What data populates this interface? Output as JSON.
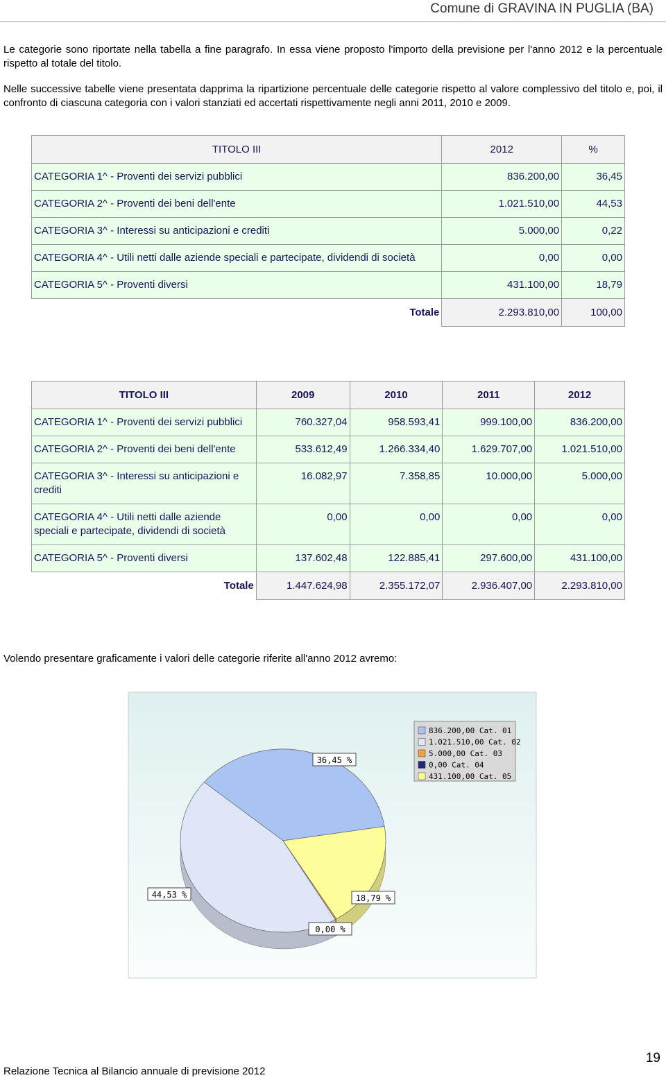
{
  "header": "Comune di GRAVINA IN PUGLIA (BA)",
  "paragraphs": [
    "Le categorie sono riportate nella tabella a fine paragrafo. In essa viene proposto l'importo della previsione per l'anno 2012 e la percentuale rispetto al totale del titolo.",
    "Nelle successive tabelle viene presentata dapprima la ripartizione percentuale delle categorie rispetto al valore complessivo del titolo e, poi, il confronto di ciascuna categoria con i valori stanziati ed accertati rispettivamente negli anni 2011, 2010 e 2009.",
    "Volendo presentare graficamente i valori delle categorie riferite all'anno 2012 avremo:"
  ],
  "table1": {
    "headers": [
      "TITOLO III",
      "2012",
      "%"
    ],
    "rows": [
      [
        "CATEGORIA 1^ - Proventi dei servizi pubblici",
        "836.200,00",
        "36,45"
      ],
      [
        "CATEGORIA 2^ - Proventi dei beni dell'ente",
        "1.021.510,00",
        "44,53"
      ],
      [
        "CATEGORIA 3^ - Interessi su anticipazioni e crediti",
        "5.000,00",
        "0,22"
      ],
      [
        "CATEGORIA 4^ - Utili netti dalle aziende speciali  e partecipate, dividendi di società",
        "0,00",
        "0,00"
      ],
      [
        "CATEGORIA 5^ - Proventi diversi",
        "431.100,00",
        "18,79"
      ]
    ],
    "total": [
      "Totale",
      "2.293.810,00",
      "100,00"
    ]
  },
  "table2": {
    "headers": [
      "TITOLO III",
      "2009",
      "2010",
      "2011",
      "2012"
    ],
    "rows": [
      [
        "CATEGORIA 1^ - Proventi dei servizi pubblici",
        "760.327,04",
        "958.593,41",
        "999.100,00",
        "836.200,00"
      ],
      [
        "CATEGORIA 2^ - Proventi dei beni dell'ente",
        "533.612,49",
        "1.266.334,40",
        "1.629.707,00",
        "1.021.510,00"
      ],
      [
        "CATEGORIA 3^ - Interessi su anticipazioni e crediti",
        "16.082,97",
        "7.358,85",
        "10.000,00",
        "5.000,00"
      ],
      [
        "CATEGORIA 4^ - Utili netti dalle aziende speciali e partecipate, dividendi di società",
        "0,00",
        "0,00",
        "0,00",
        "0,00"
      ],
      [
        "CATEGORIA 5^ - Proventi diversi",
        "137.602,48",
        "122.885,41",
        "297.600,00",
        "431.100,00"
      ]
    ],
    "total": [
      "Totale",
      "1.447.624,98",
      "2.355.172,07",
      "2.936.407,00",
      "2.293.810,00"
    ]
  },
  "chart": {
    "type": "pie",
    "categories": [
      "836.200,00 Cat. 01",
      "1.021.510,00 Cat. 02",
      "5.000,00 Cat. 03",
      "0,00 Cat. 04",
      "431.100,00 Cat. 05"
    ],
    "values": [
      36.45,
      44.53,
      0.22,
      0,
      18.79
    ],
    "value_labels": [
      "36,45 %",
      "44,53 %",
      null,
      "0,00 %",
      "18,79 %"
    ],
    "colors": [
      "#a9c3f3",
      "#dfe6f8",
      "#f0a23c",
      "#1e2c78",
      "#fdfd9a"
    ]
  },
  "footer": {
    "text": "Relazione Tecnica al Bilancio annuale di previsione 2012",
    "page": "19"
  }
}
